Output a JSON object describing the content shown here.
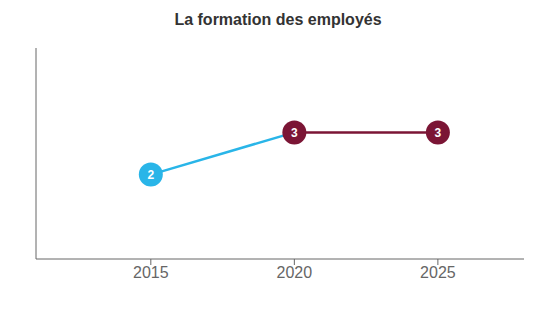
{
  "chart_data": {
    "type": "line",
    "title": "La formation des employés",
    "x": [
      2015,
      2020,
      2025
    ],
    "values": [
      2,
      3,
      3
    ],
    "colors": [
      "#29B5E8",
      "#7B1535",
      "#7B1535"
    ],
    "xlim": [
      2011,
      2028
    ],
    "xticks": [
      2015,
      2020,
      2025
    ],
    "ylim": [
      0,
      5
    ],
    "yticks": [],
    "tick_labels": "x",
    "data_labels": true,
    "grid": false,
    "marker": "circle"
  }
}
